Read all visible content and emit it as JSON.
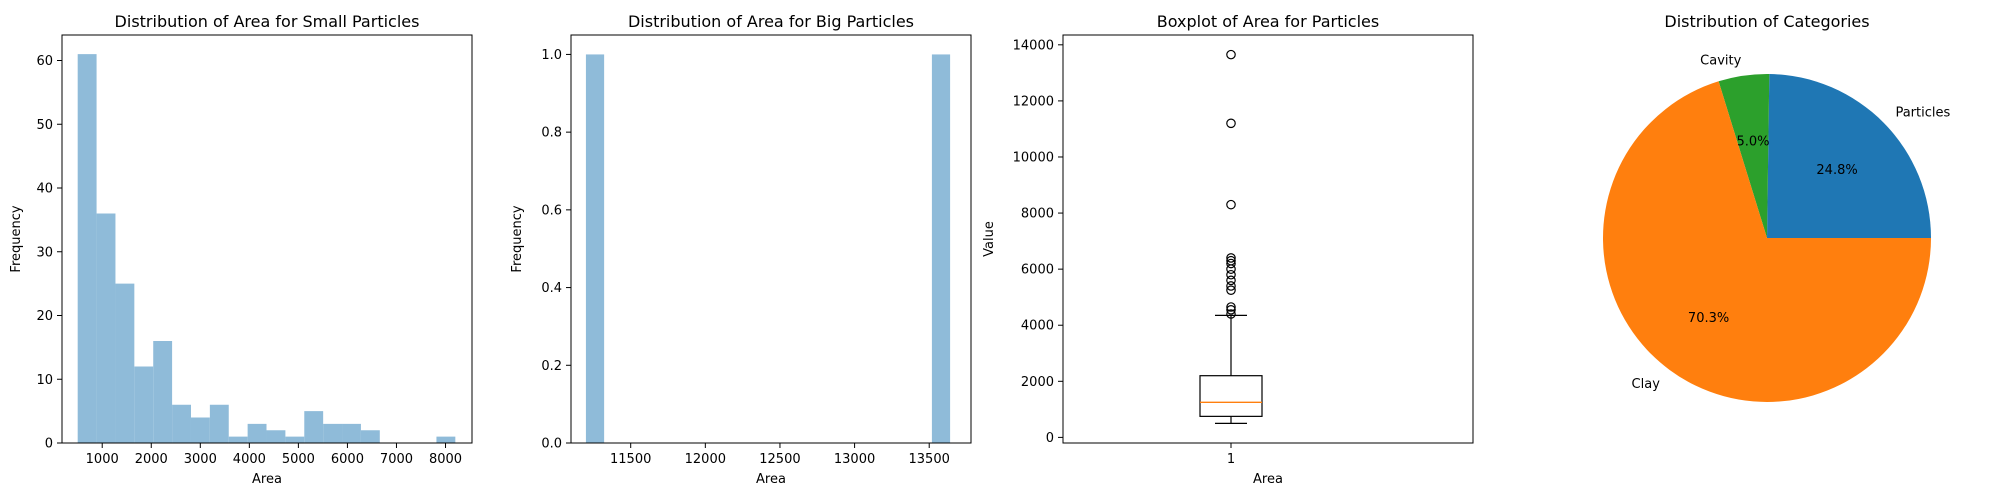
{
  "chart_data": [
    {
      "type": "histogram",
      "title": "Distribution of Area for Small Particles",
      "xlabel": "Area",
      "ylabel": "Frequency",
      "xlim": [
        180,
        8540
      ],
      "ylim": [
        0,
        64
      ],
      "xticks": [
        1000,
        2000,
        3000,
        4000,
        5000,
        6000,
        7000,
        8000
      ],
      "yticks": [
        0,
        10,
        20,
        30,
        40,
        50,
        60
      ],
      "bin_start": 500,
      "bin_width": 385,
      "counts": [
        61,
        36,
        25,
        12,
        16,
        6,
        4,
        6,
        1,
        3,
        2,
        1,
        5,
        3,
        3,
        2,
        0,
        0,
        0,
        1
      ],
      "color": "#8fbbd9"
    },
    {
      "type": "histogram",
      "title": "Distribution of Area for Big Particles",
      "xlabel": "Area",
      "ylabel": "Frequency",
      "xlim": [
        11100,
        13780
      ],
      "ylim": [
        0,
        1.05
      ],
      "xticks": [
        11500,
        12000,
        12500,
        13000,
        13500
      ],
      "yticks": [
        0.0,
        0.2,
        0.4,
        0.6,
        0.8,
        1.0
      ],
      "bin_start": 11200,
      "bin_width": 122,
      "counts": [
        1,
        0,
        0,
        0,
        0,
        0,
        0,
        0,
        0,
        0,
        0,
        0,
        0,
        0,
        0,
        0,
        0,
        0,
        0,
        1
      ],
      "color": "#8fbbd9"
    },
    {
      "type": "boxplot",
      "title": "Boxplot of Area for Particles",
      "xlabel": "Area",
      "ylabel": "Value",
      "xticks": [
        "1"
      ],
      "ylim": [
        -200,
        14350
      ],
      "yticks": [
        0,
        2000,
        4000,
        6000,
        8000,
        10000,
        12000,
        14000
      ],
      "box": {
        "whisker_low": 500,
        "q1": 750,
        "median": 1250,
        "q3": 2200,
        "whisker_high": 4350
      },
      "outliers": [
        4400,
        4550,
        4650,
        5250,
        5400,
        5600,
        5800,
        6000,
        6200,
        6300,
        6400,
        8300,
        11200,
        13650
      ],
      "box_color": "#000000",
      "median_color": "#ff7f0e"
    },
    {
      "type": "pie",
      "title": "Distribution of Categories",
      "slices": [
        {
          "label": "Particles",
          "value": 24.8,
          "pct": "24.8%",
          "color": "#1f77b4"
        },
        {
          "label": "Cavity",
          "value": 5.0,
          "pct": "5.0%",
          "color": "#2ca02c"
        },
        {
          "label": "Clay",
          "value": 70.3,
          "pct": "70.3%",
          "color": "#ff7f0e"
        }
      ]
    }
  ]
}
